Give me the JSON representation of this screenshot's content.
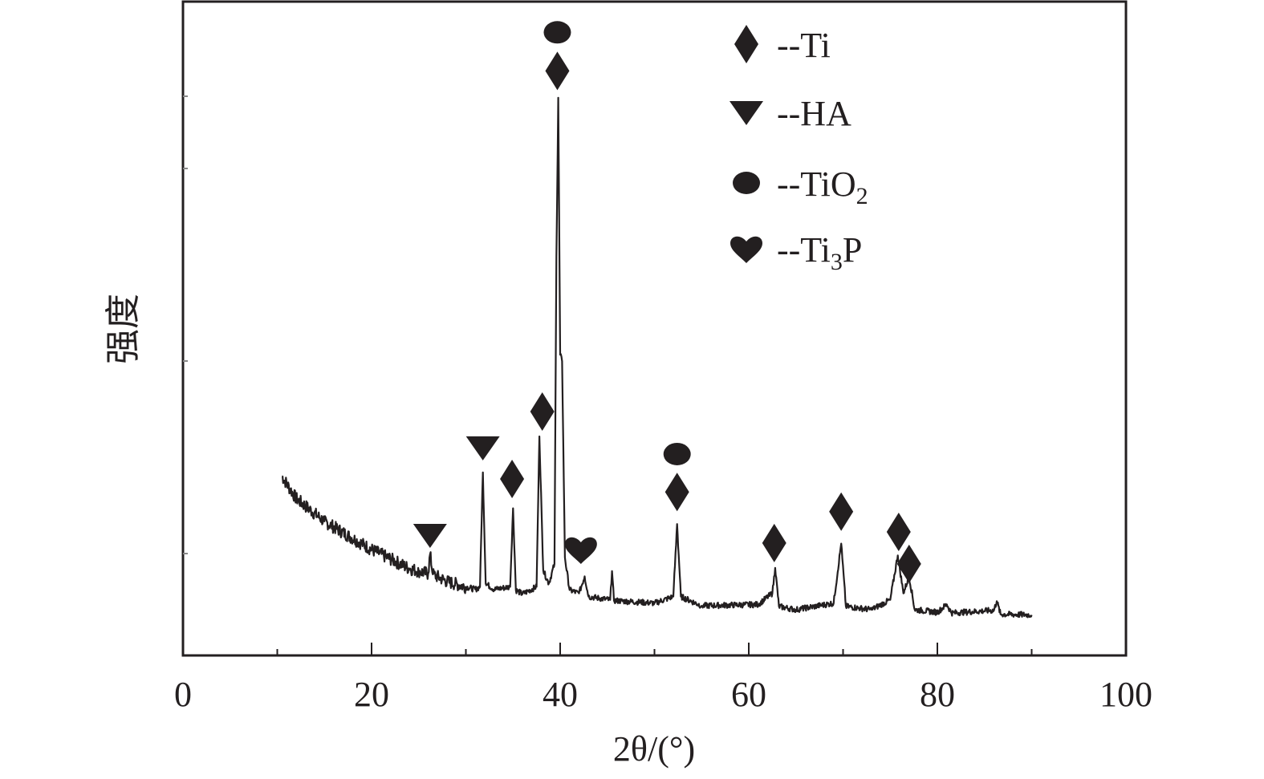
{
  "chart_data": {
    "type": "line",
    "title": "",
    "xlabel": "2θ/(°)",
    "ylabel": "强度",
    "xlim": [
      0,
      100
    ],
    "ylim": [
      0,
      100
    ],
    "xticks": [
      0,
      20,
      40,
      60,
      80,
      100
    ],
    "y_tick_labels_shown": false,
    "grid": false,
    "legend_position": "top-right",
    "line_color": "#231f20",
    "series": [
      {
        "x": [
          10.5,
          12,
          15,
          20,
          24,
          25,
          26,
          26.2,
          26.5,
          28,
          31,
          31.5,
          31.8,
          32.1,
          33,
          34.7,
          35,
          35.3,
          36,
          37.5,
          37.8,
          38.2,
          38.8,
          39.4,
          39.6,
          39.8,
          40.0,
          40.2,
          40.5,
          41,
          42,
          42.6,
          43,
          45.3,
          45.5,
          45.7,
          50,
          52,
          52.4,
          52.8,
          55,
          61,
          62.5,
          62.8,
          63.2,
          65,
          69,
          69.8,
          70.3,
          73,
          75,
          75.8,
          76.4,
          77,
          77.6,
          80,
          81,
          81.5,
          86,
          86.3,
          86.7,
          90
        ],
        "y": [
          27.4,
          24,
          20.5,
          16.2,
          13.3,
          12.9,
          12.5,
          15.5,
          12.4,
          11.3,
          10.1,
          10.5,
          28,
          11,
          10.1,
          10.5,
          22.5,
          10,
          9.4,
          10.5,
          33.5,
          13,
          11,
          14,
          61,
          85.3,
          46,
          45,
          15,
          10,
          9.5,
          12.1,
          9,
          8.5,
          12.9,
          8.4,
          8,
          9,
          20.1,
          9,
          7.6,
          7.8,
          9.5,
          13.4,
          7.5,
          7,
          8,
          17.1,
          7.5,
          7,
          8.5,
          15.3,
          9.5,
          12.1,
          7,
          6.6,
          7.8,
          6.5,
          6.9,
          8.3,
          6.3,
          6.2
        ]
      }
    ],
    "phase_markers": [
      {
        "phase": "HA",
        "symbol": "triangle-down",
        "x": 26.2,
        "y": 18.4
      },
      {
        "phase": "HA",
        "symbol": "triangle-down",
        "x": 31.8,
        "y": 31.8
      },
      {
        "phase": "Ti",
        "symbol": "diamond",
        "x": 34.9,
        "y": 27
      },
      {
        "phase": "Ti",
        "symbol": "diamond",
        "x": 38.1,
        "y": 37.3
      },
      {
        "phase": "Ti",
        "symbol": "diamond",
        "x": 39.7,
        "y": 89.4
      },
      {
        "phase": "TiO2",
        "symbol": "circle",
        "x": 39.7,
        "y": 95.3
      },
      {
        "phase": "Ti3P",
        "symbol": "heart",
        "x": 42.2,
        "y": 16.2
      },
      {
        "phase": "Ti",
        "symbol": "diamond",
        "x": 52.4,
        "y": 25
      },
      {
        "phase": "TiO2",
        "symbol": "circle",
        "x": 52.4,
        "y": 30.8
      },
      {
        "phase": "Ti",
        "symbol": "diamond",
        "x": 62.7,
        "y": 17.2
      },
      {
        "phase": "Ti",
        "symbol": "diamond",
        "x": 69.8,
        "y": 22
      },
      {
        "phase": "Ti",
        "symbol": "diamond",
        "x": 75.9,
        "y": 18.9
      },
      {
        "phase": "Ti",
        "symbol": "diamond",
        "x": 77.0,
        "y": 14
      }
    ],
    "legend": [
      {
        "symbol": "diamond",
        "prefix": "--Ti",
        "sub": "",
        "suffix": ""
      },
      {
        "symbol": "triangle-down",
        "prefix": "--HA",
        "sub": "",
        "suffix": ""
      },
      {
        "symbol": "circle",
        "prefix": "--TiO",
        "sub": "2",
        "suffix": ""
      },
      {
        "symbol": "heart",
        "prefix": "--Ti",
        "sub": "3",
        "suffix": "P"
      }
    ]
  }
}
